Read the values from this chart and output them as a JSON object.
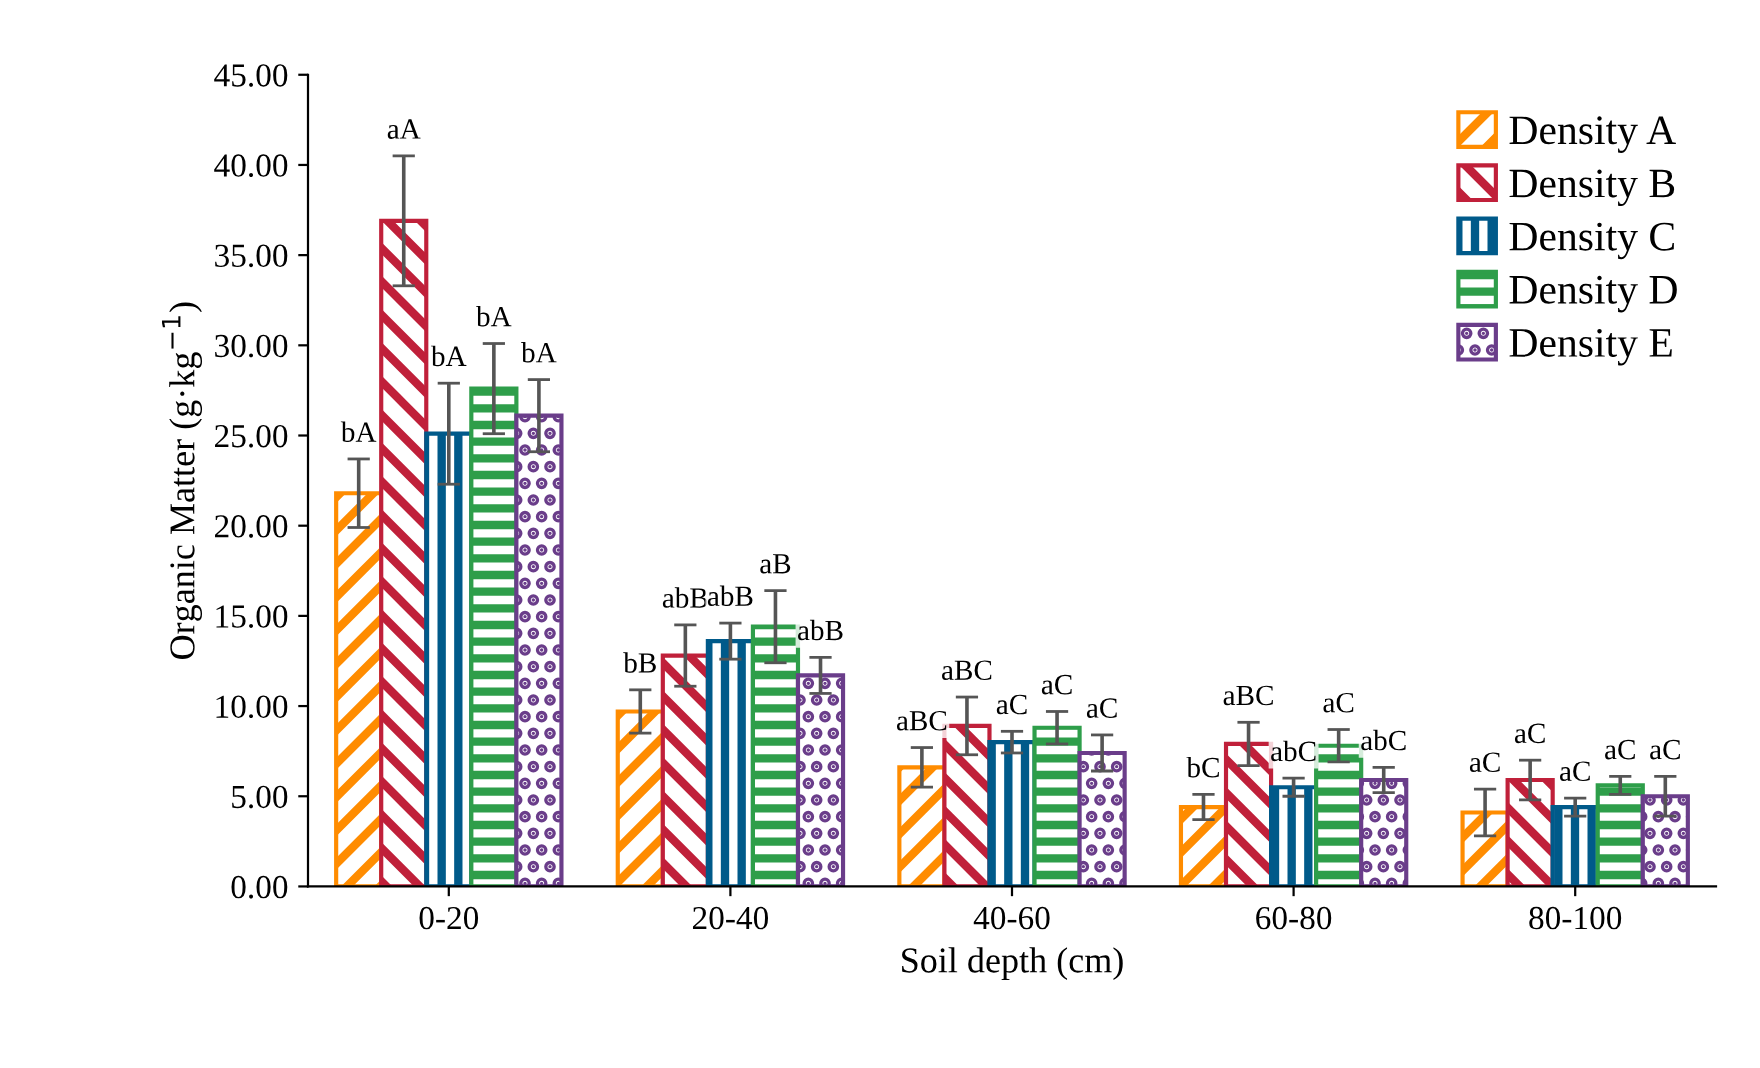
{
  "chart_data": {
    "type": "bar",
    "xlabel": "Soil depth (cm)",
    "ylabel": "Organic Matter (g·kg$^{−1}$)",
    "categories": [
      "0-20",
      "20-40",
      "40-60",
      "60-80",
      "80-100"
    ],
    "series": [
      {
        "name": "Density A",
        "color": "#ff8c00",
        "values": [
          21.8,
          9.7,
          6.6,
          4.4,
          4.1
        ],
        "errors": [
          1.9,
          1.2,
          1.1,
          0.7,
          1.3
        ],
        "value_labels": [
          "bA",
          "bB",
          "aBC",
          "bC",
          "aC"
        ]
      },
      {
        "name": "Density B",
        "color": "#c0203a",
        "values": [
          36.9,
          12.8,
          8.9,
          7.9,
          5.9
        ],
        "errors": [
          3.6,
          1.7,
          1.6,
          1.2,
          1.1
        ],
        "value_labels": [
          "aA",
          "abB",
          "aBC",
          "aBC",
          "aC"
        ]
      },
      {
        "name": "Density C",
        "color": "#005a8a",
        "values": [
          25.1,
          13.6,
          8.0,
          5.5,
          4.4
        ],
        "errors": [
          2.8,
          1.0,
          0.6,
          0.5,
          0.5
        ],
        "value_labels": [
          "bA",
          "abB",
          "aC",
          "abC",
          "aC"
        ]
      },
      {
        "name": "Density D",
        "color": "#2e9e4a",
        "values": [
          27.6,
          14.4,
          8.8,
          7.8,
          5.6
        ],
        "errors": [
          2.5,
          2.0,
          0.9,
          0.9,
          0.5
        ],
        "value_labels": [
          "bA",
          "aB",
          "aC",
          "aC",
          "aC"
        ]
      },
      {
        "name": "Density E",
        "color": "#6a3d8a",
        "values": [
          26.1,
          11.7,
          7.4,
          5.9,
          5.0
        ],
        "errors": [
          2.0,
          1.0,
          1.0,
          0.7,
          1.1
        ],
        "value_labels": [
          "bA",
          "abB",
          "aC",
          "abC",
          "aC"
        ]
      }
    ],
    "ylim": [
      0,
      45
    ],
    "yticks": [
      {
        "value": 0,
        "label": "0.00"
      },
      {
        "value": 5,
        "label": "5.00"
      },
      {
        "value": 10,
        "label": "10.00"
      },
      {
        "value": 15,
        "label": "15.00"
      },
      {
        "value": 20,
        "label": "20.00"
      },
      {
        "value": 25,
        "label": "25.00"
      },
      {
        "value": 30,
        "label": "30.00"
      },
      {
        "value": 35,
        "label": "35.00"
      },
      {
        "value": 40,
        "label": "40.00"
      },
      {
        "value": 45,
        "label": "45.00"
      }
    ],
    "legend": "top right",
    "grid": false
  }
}
